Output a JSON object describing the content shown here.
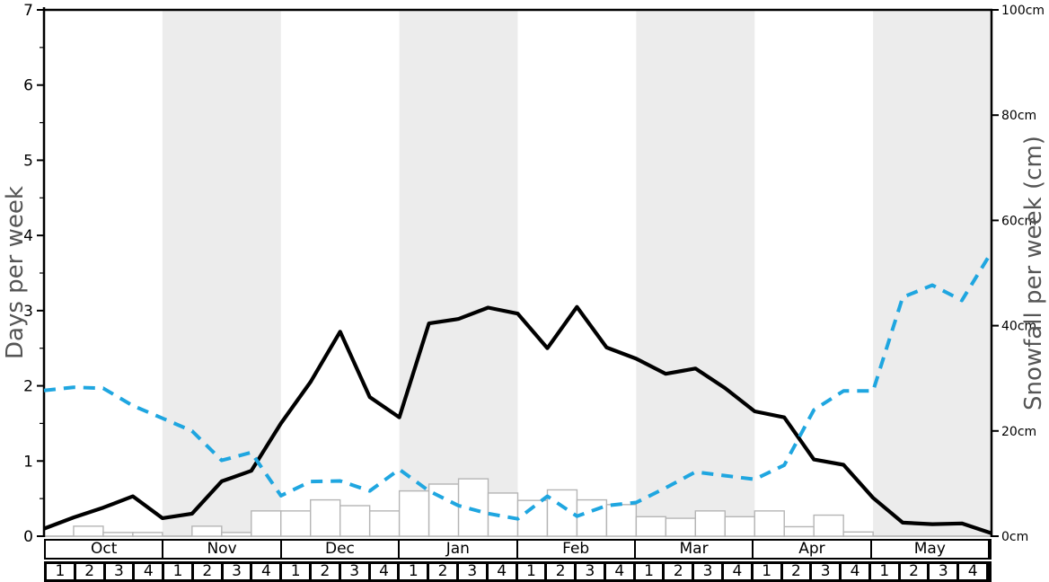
{
  "chart_data": {
    "type": "line",
    "title": "",
    "left_axis": {
      "label": "Days per week",
      "min": 0,
      "max": 7,
      "major_step": 1,
      "minor_step": 0.5,
      "ticks": [
        "0",
        "1",
        "2",
        "3",
        "4",
        "5",
        "6",
        "7"
      ]
    },
    "right_axis": {
      "label": "Snowfall per week (cm)",
      "min": 0,
      "max": 100,
      "major_step": 20,
      "ticks": [
        "0cm",
        "20cm",
        "40cm",
        "60cm",
        "80cm",
        "100cm"
      ]
    },
    "months": [
      "Oct",
      "Nov",
      "Dec",
      "Jan",
      "Feb",
      "Mar",
      "Apr",
      "May"
    ],
    "week_labels": [
      "1",
      "2",
      "3",
      "4"
    ],
    "shaded_months": [
      "Nov",
      "Jan",
      "Mar",
      "May"
    ],
    "grid": "off",
    "legend": "none",
    "series": [
      {
        "name": "snowy-days-per-week",
        "axis": "left",
        "style": "solid",
        "color": "#000000",
        "values": [
          0.1,
          0.25,
          0.38,
          0.53,
          0.24,
          0.3,
          0.73,
          0.87,
          1.5,
          2.05,
          2.72,
          1.85,
          1.58,
          2.83,
          2.89,
          3.04,
          2.96,
          2.5,
          3.05,
          2.51,
          2.36,
          2.16,
          2.23,
          1.97,
          1.66,
          1.58,
          1.02,
          0.95,
          0.51,
          0.18,
          0.16,
          0.17,
          0.04
        ]
      },
      {
        "name": "snowfall-trend-cm",
        "axis": "right",
        "style": "dashed",
        "color": "#1fa6e0",
        "values": [
          27.7,
          28.3,
          28.1,
          24.8,
          22.4,
          20.0,
          14.4,
          15.9,
          7.7,
          10.4,
          10.5,
          8.6,
          12.7,
          8.6,
          5.8,
          4.3,
          3.3,
          7.6,
          3.8,
          5.8,
          6.4,
          9.2,
          12.2,
          11.5,
          10.8,
          13.5,
          24.0,
          27.6,
          27.6,
          45.4,
          47.7,
          44.8,
          54.0
        ]
      }
    ],
    "bars": {
      "name": "snowfall-per-week-cm",
      "axis": "right",
      "fill": "#ffffff",
      "stroke": "#b5b5b5",
      "values": [
        0,
        1.9,
        0.7,
        0.7,
        0,
        1.9,
        0.7,
        4.8,
        4.8,
        6.9,
        5.8,
        4.8,
        8.6,
        9.9,
        10.9,
        8.2,
        6.8,
        8.8,
        6.9,
        6.0,
        3.7,
        3.4,
        4.8,
        3.7,
        4.8,
        1.8,
        4.0,
        0.8,
        0,
        0,
        0,
        0
      ]
    },
    "colors": {
      "band": "#ececec",
      "baseline": "#9e9e9e",
      "frame": "#000000",
      "axis_label": "#555555",
      "tick_label": "#000000"
    }
  }
}
